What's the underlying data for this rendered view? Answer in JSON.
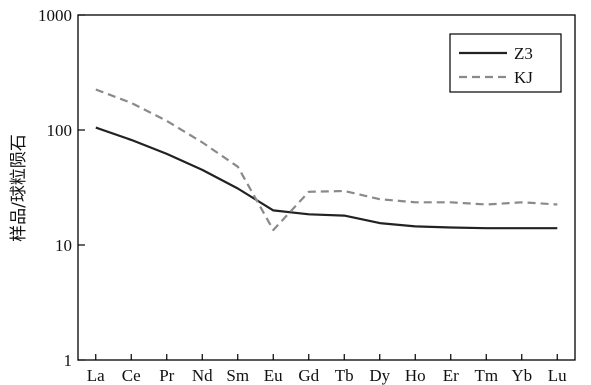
{
  "chart_data": {
    "type": "line",
    "title": "",
    "xlabel": "",
    "ylabel": "样品/球粒陨石",
    "yscale": "log",
    "ylim": [
      1,
      1000
    ],
    "yticks": [
      "1",
      "10",
      "100",
      "1000"
    ],
    "grid": false,
    "legend_position": "top-right",
    "categories": [
      "La",
      "Ce",
      "Pr",
      "Nd",
      "Sm",
      "Eu",
      "Gd",
      "Tb",
      "Dy",
      "Ho",
      "Er",
      "Tm",
      "Yb",
      "Lu"
    ],
    "series": [
      {
        "name": "Z3",
        "style": "solid",
        "color": "#222222",
        "values": [
          105,
          82,
          62,
          45,
          31,
          20,
          18.5,
          18,
          15.5,
          14.5,
          14.2,
          14,
          14,
          14
        ]
      },
      {
        "name": "KJ",
        "style": "dashed",
        "color": "#8a8a8a",
        "values": [
          225,
          172,
          120,
          78,
          48,
          13.5,
          29,
          29.5,
          25,
          23.5,
          23.5,
          22.5,
          23.5,
          22.5
        ]
      }
    ]
  }
}
